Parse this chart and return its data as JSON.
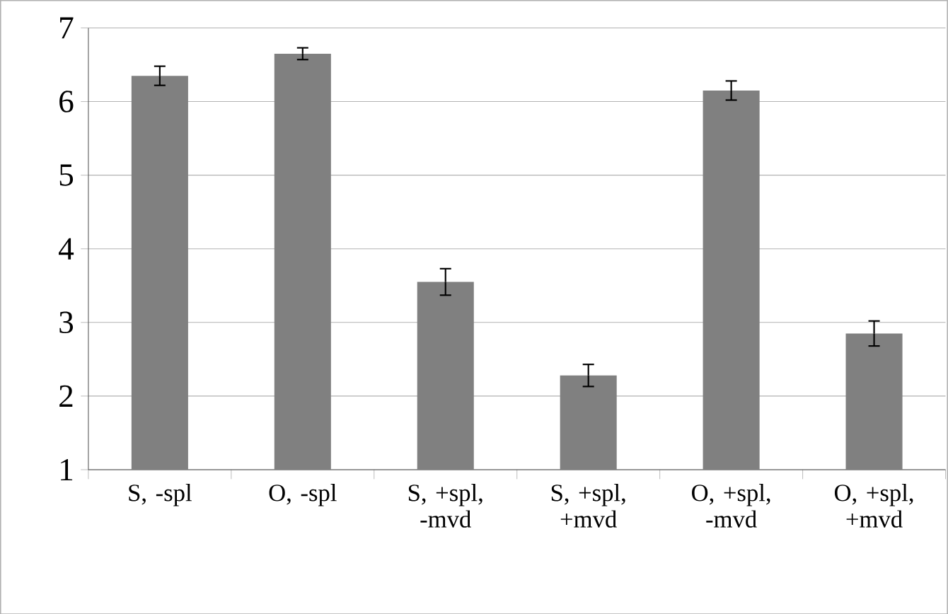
{
  "chart_data": {
    "type": "bar",
    "categories": [
      "S, -spl",
      "O, -spl",
      "S, +spl, -mvd",
      "S, +spl, +mvd",
      "O, +spl, -mvd",
      "O, +spl, +mvd"
    ],
    "values": [
      6.35,
      6.65,
      3.55,
      2.28,
      6.15,
      2.85
    ],
    "errors": [
      0.13,
      0.08,
      0.18,
      0.15,
      0.13,
      0.17
    ],
    "color": "#808080",
    "ylim": [
      1,
      7
    ],
    "yticks": [
      1,
      2,
      3,
      4,
      5,
      6,
      7
    ],
    "grid": "y"
  }
}
